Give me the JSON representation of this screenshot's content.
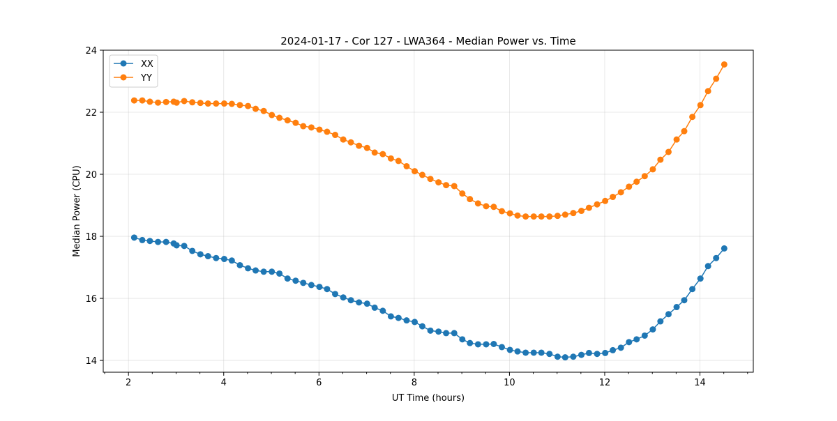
{
  "chart_data": {
    "type": "line",
    "title": "2024-01-17 - Cor 127 - LWA364 - Median Power vs. Time",
    "xlabel": "UT Time (hours)",
    "ylabel": "Median Power (CPU)",
    "xlim": [
      1.47,
      15.12
    ],
    "ylim": [
      13.62,
      24
    ],
    "xticks": [
      2,
      4,
      6,
      8,
      10,
      12,
      14
    ],
    "xtick_labels": [
      "2",
      "4",
      "6",
      "8",
      "10",
      "12",
      "14"
    ],
    "yticks": [
      14,
      16,
      18,
      20,
      22,
      24
    ],
    "ytick_labels": [
      "14",
      "16",
      "18",
      "20",
      "22",
      "24"
    ],
    "grid": true,
    "legend_placement": "top-left",
    "x": [
      2.12,
      2.29,
      2.45,
      2.62,
      2.79,
      2.95,
      3.01,
      3.17,
      3.34,
      3.51,
      3.67,
      3.84,
      4.01,
      4.17,
      4.34,
      4.51,
      4.67,
      4.84,
      5.01,
      5.17,
      5.34,
      5.51,
      5.67,
      5.84,
      6.01,
      6.17,
      6.34,
      6.51,
      6.67,
      6.84,
      7.01,
      7.17,
      7.34,
      7.51,
      7.67,
      7.84,
      8.01,
      8.17,
      8.34,
      8.51,
      8.67,
      8.84,
      9.01,
      9.17,
      9.34,
      9.51,
      9.67,
      9.84,
      10.01,
      10.17,
      10.34,
      10.51,
      10.67,
      10.84,
      11.01,
      11.17,
      11.34,
      11.51,
      11.67,
      11.84,
      12.01,
      12.17,
      12.34,
      12.51,
      12.67,
      12.84,
      13.01,
      13.17,
      13.34,
      13.51,
      13.67,
      13.84,
      14.01,
      14.17,
      14.34,
      14.51
    ],
    "series": [
      {
        "name": "XX",
        "color": "#1f77b4",
        "values": [
          17.96,
          17.88,
          17.85,
          17.82,
          17.82,
          17.77,
          17.71,
          17.69,
          17.53,
          17.42,
          17.36,
          17.3,
          17.27,
          17.22,
          17.07,
          16.97,
          16.9,
          16.86,
          16.86,
          16.8,
          16.64,
          16.57,
          16.5,
          16.43,
          16.37,
          16.3,
          16.14,
          16.03,
          15.94,
          15.87,
          15.83,
          15.7,
          15.6,
          15.42,
          15.37,
          15.29,
          15.24,
          15.1,
          14.96,
          14.93,
          14.88,
          14.88,
          14.68,
          14.56,
          14.52,
          14.52,
          14.53,
          14.43,
          14.34,
          14.29,
          14.25,
          14.25,
          14.25,
          14.21,
          14.12,
          14.1,
          14.12,
          14.18,
          14.24,
          14.21,
          14.24,
          14.33,
          14.41,
          14.59,
          14.68,
          14.8,
          15.0,
          15.26,
          15.49,
          15.72,
          15.94,
          16.3,
          16.64,
          17.04,
          17.3,
          17.61
        ]
      },
      {
        "name": "YY",
        "color": "#ff7f0e",
        "values": [
          22.38,
          22.38,
          22.34,
          22.31,
          22.33,
          22.34,
          22.31,
          22.36,
          22.32,
          22.3,
          22.28,
          22.28,
          22.28,
          22.27,
          22.23,
          22.2,
          22.11,
          22.04,
          21.91,
          21.82,
          21.74,
          21.66,
          21.55,
          21.51,
          21.44,
          21.37,
          21.27,
          21.12,
          21.03,
          20.92,
          20.85,
          20.7,
          20.65,
          20.51,
          20.43,
          20.26,
          20.1,
          19.98,
          19.85,
          19.74,
          19.65,
          19.62,
          19.38,
          19.2,
          19.06,
          18.97,
          18.95,
          18.81,
          18.74,
          18.67,
          18.64,
          18.64,
          18.64,
          18.64,
          18.66,
          18.7,
          18.75,
          18.82,
          18.92,
          19.03,
          19.14,
          19.27,
          19.42,
          19.6,
          19.76,
          19.94,
          20.16,
          20.47,
          20.72,
          21.12,
          21.39,
          21.85,
          22.23,
          22.68,
          23.08,
          23.54
        ]
      }
    ]
  }
}
